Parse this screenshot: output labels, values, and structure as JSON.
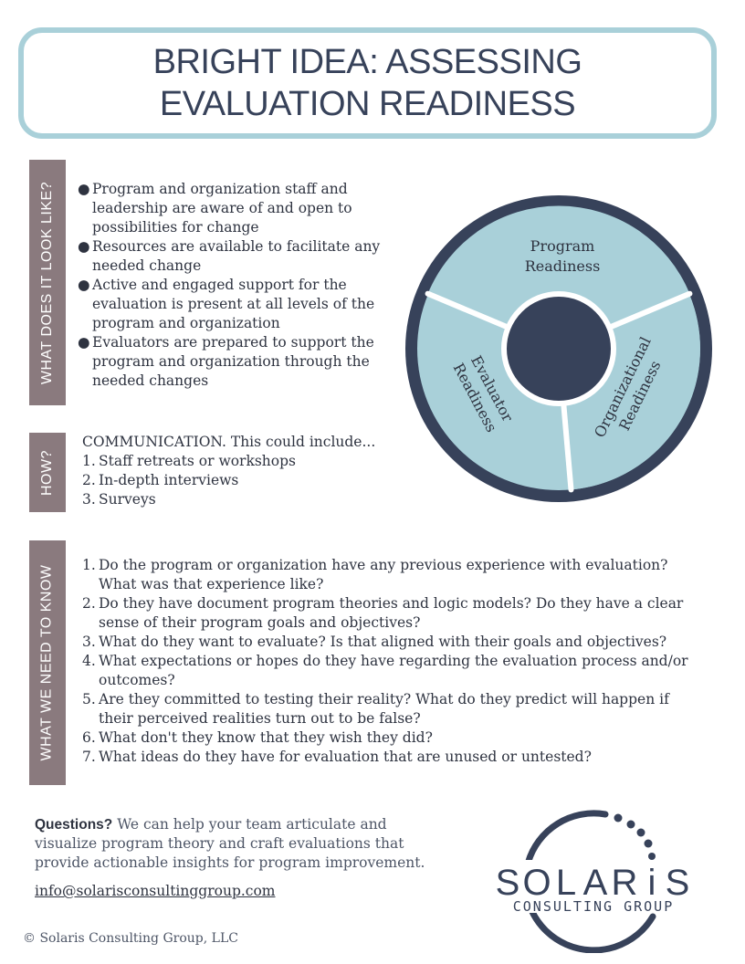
{
  "header": {
    "title_line1": "BRIGHT IDEA: ASSESSING",
    "title_line2": "EVALUATION READINESS"
  },
  "sections": {
    "look_like": {
      "tab": "WHAT DOES IT LOOK LIKE?",
      "bullets": [
        [
          "Program and organization staff and",
          "leadership are aware of and open to",
          "possibilities for change"
        ],
        [
          "Resources are available to facilitate any",
          "needed change"
        ],
        [
          "Active and engaged support for the",
          "evaluation is present at all levels of the",
          "program and organization"
        ],
        [
          "Evaluators are prepared to support the",
          "program and organization through the",
          "needed changes"
        ]
      ]
    },
    "how": {
      "tab": "HOW?",
      "intro": "COMMUNICATION. This could include...",
      "items": [
        "Staff retreats or workshops",
        "In-depth interviews",
        "Surveys"
      ]
    },
    "know": {
      "tab": "WHAT WE NEED TO KNOW",
      "items": [
        [
          "Do the program or organization have any previous experience with evaluation?",
          "What was that experience like?"
        ],
        [
          "Do they have document program theories and logic models? Do they have a clear",
          "sense of their program goals and objectives?"
        ],
        [
          "What do they want to evaluate? Is that aligned with their goals and objectives?"
        ],
        [
          "What expectations or hopes do they have regarding the evaluation process and/or",
          "outcomes?"
        ],
        [
          "Are they committed to testing their reality? What do they predict will happen if",
          "their perceived realities turn out to be false?"
        ],
        [
          "What don't they know that they wish they did?"
        ],
        [
          "What ideas do they have for evaluation that are unused or untested?"
        ]
      ]
    }
  },
  "diagram": {
    "program": [
      "Program",
      "Readiness"
    ],
    "organizational": [
      "Organizational",
      "Readiness"
    ],
    "evaluator": [
      "Evaluator",
      "Readiness"
    ]
  },
  "footer": {
    "questions_label": "Questions?",
    "questions_text": " We can help your team articulate and",
    "line2": "visualize program theory and craft evaluations that",
    "line3": "provide actionable insights for program improvement.",
    "email": "info@solarisconsultinggroup.com"
  },
  "logo": {
    "letters": [
      "S",
      "O",
      "L",
      "A",
      "R",
      "i",
      "S"
    ],
    "subtitle": "CONSULTING GROUP"
  },
  "copyright": "© Solaris Consulting Group, LLC",
  "colors": {
    "navy": "#37425a",
    "light_blue": "#a9d0d9",
    "tab_mauve": "#8a7a7e"
  }
}
